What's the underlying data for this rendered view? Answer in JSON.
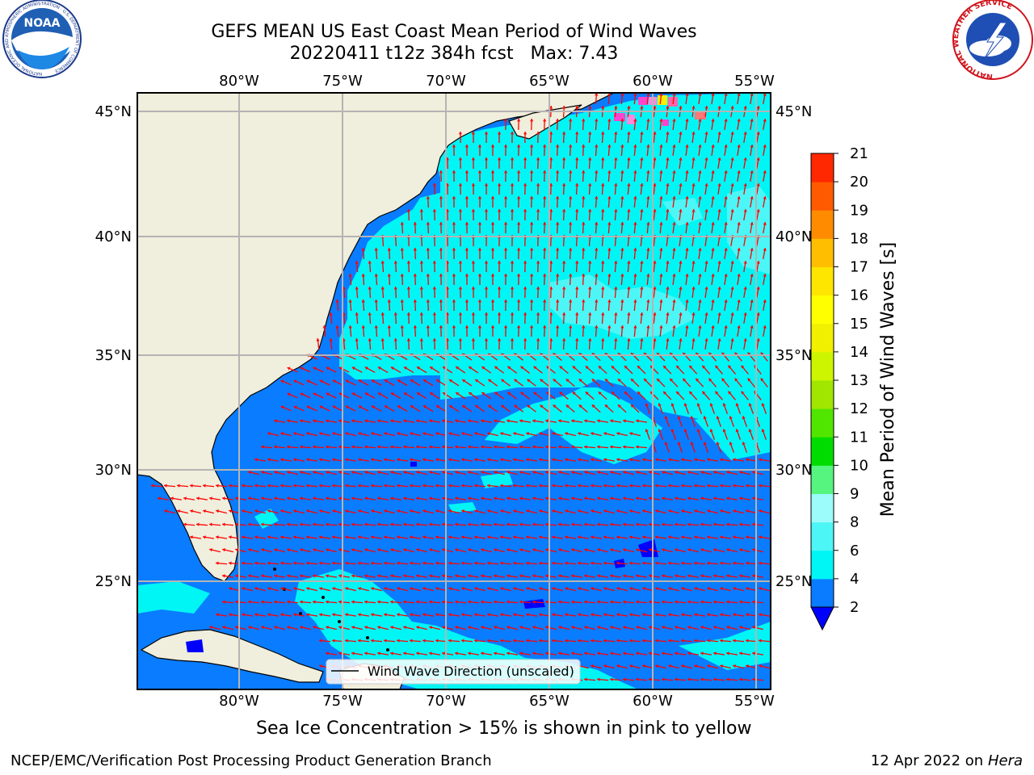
{
  "header": {
    "title_line1": "GEFS MEAN US East Coast Mean Period of Wind Waves",
    "title_line2": "20220411 t12z 384h fcst   Max: 7.43"
  },
  "logos": {
    "left": "noara-logo-icon",
    "left_ring_text": "NATIONAL OCEANIC AND ATMOSPHERIC ADMINISTRATION · U.S. DEPARTMENT OF COMMERCE",
    "left_center_text": "NOAA",
    "right": "national-weather-service-logo-icon",
    "right_ring_text": "NATIONAL WEATHER SERVICE"
  },
  "map": {
    "lon_labels": [
      "80°W",
      "75°W",
      "70°W",
      "65°W",
      "60°W",
      "55°W"
    ],
    "lat_labels": [
      "45°N",
      "40°N",
      "35°N",
      "30°N",
      "25°N"
    ],
    "legend_label": "Wind Wave Direction (unscaled)",
    "colors": {
      "land": "#f0eedc",
      "period_2_4": "#0a7cff",
      "period_4_6": "#00f5f5",
      "period_6_8": "#4cf6f6",
      "arrow": "#ff0000",
      "grid": "#b4b4b4"
    }
  },
  "colorbar": {
    "label": "Mean Period of Wind Waves [s]",
    "ticks": [
      "2",
      "4",
      "6",
      "8",
      "9",
      "10",
      "11",
      "12",
      "13",
      "14",
      "15",
      "16",
      "17",
      "18",
      "19",
      "20",
      "21"
    ],
    "colors": [
      "#0a7cff",
      "#00f5f5",
      "#4cf6f6",
      "#9cfbfb",
      "#55f580",
      "#00dc00",
      "#50e600",
      "#a0e600",
      "#cdf500",
      "#f0f000",
      "#ffff00",
      "#ffe600",
      "#ffbe00",
      "#ff8c00",
      "#ff5a00",
      "#ff2800",
      "#ff0000"
    ],
    "under_color": "#0000ff"
  },
  "footer": {
    "caption": "Sea Ice Concentration > 15% is shown in pink to yellow",
    "credit": "NCEP/EMC/Verification Post Processing Product Generation Branch",
    "date": "12 Apr 2022 on ",
    "machine": "Hera"
  }
}
